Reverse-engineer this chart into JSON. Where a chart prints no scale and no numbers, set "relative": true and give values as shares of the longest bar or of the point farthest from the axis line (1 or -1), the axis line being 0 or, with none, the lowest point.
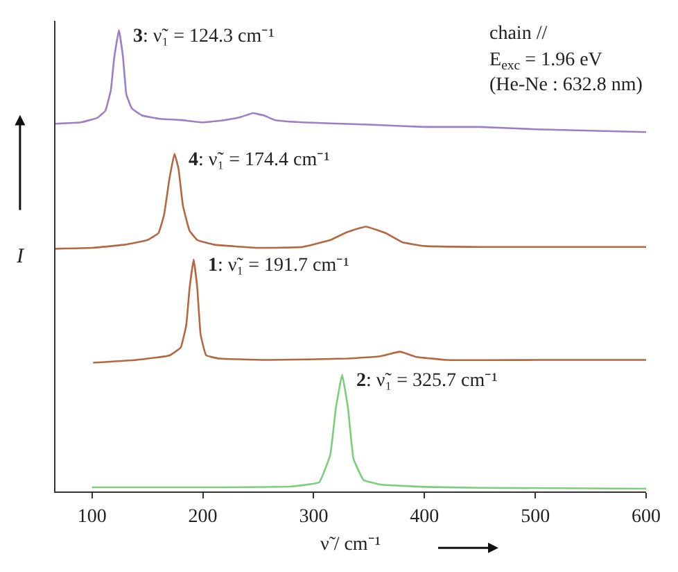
{
  "chart_data": {
    "type": "line",
    "relative": true,
    "xlabel": "ν̃ / cm⁻¹",
    "ylabel": "I",
    "xlim": [
      67,
      600
    ],
    "xticks": [
      100,
      200,
      300,
      400,
      500,
      600
    ],
    "legend": false,
    "marker": "none",
    "line_style": "solid",
    "annotations": [
      "chain //",
      "E$_{exc}$ = 1.96 eV",
      "(He-Ne : 632.8 nm)"
    ],
    "series": [
      {
        "name": "3: ν̃₁ = 124.3 cm⁻¹",
        "color": "#9b7fc7",
        "x": [
          67,
          90,
          105,
          112,
          117,
          120,
          124.3,
          128,
          131,
          136,
          145,
          160,
          180,
          200,
          220,
          235,
          245,
          255,
          265,
          290,
          350,
          400,
          450,
          500,
          550,
          600
        ],
        "values": [
          0.797,
          0.8,
          0.81,
          0.825,
          0.87,
          0.94,
          1.0,
          0.94,
          0.86,
          0.83,
          0.815,
          0.808,
          0.805,
          0.8,
          0.805,
          0.812,
          0.82,
          0.815,
          0.805,
          0.8,
          0.795,
          0.79,
          0.79,
          0.785,
          0.782,
          0.779
        ]
      },
      {
        "name": "4: ν̃₁ = 174.4 cm⁻¹",
        "color": "#b5673f",
        "x": [
          67,
          100,
          130,
          150,
          160,
          165,
          170,
          174.4,
          178,
          182,
          188,
          195,
          210,
          250,
          290,
          315,
          330,
          347,
          365,
          380,
          400,
          450,
          500,
          550,
          600
        ],
        "values": [
          0.526,
          0.528,
          0.535,
          0.545,
          0.56,
          0.6,
          0.68,
          0.732,
          0.7,
          0.62,
          0.565,
          0.545,
          0.535,
          0.528,
          0.53,
          0.545,
          0.562,
          0.574,
          0.56,
          0.54,
          0.532,
          0.53,
          0.53,
          0.53,
          0.53
        ]
      },
      {
        "name": "1: ν̃₁ = 191.7 cm⁻¹",
        "color": "#b5673f",
        "x": [
          101,
          140,
          170,
          180,
          185,
          188,
          191.7,
          195,
          198,
          203,
          215,
          260,
          330,
          360,
          378,
          392,
          420,
          500,
          600
        ],
        "values": [
          0.279,
          0.285,
          0.295,
          0.312,
          0.36,
          0.44,
          0.503,
          0.44,
          0.34,
          0.295,
          0.288,
          0.285,
          0.288,
          0.293,
          0.303,
          0.292,
          0.285,
          0.285,
          0.285
        ]
      },
      {
        "name": "2: ν̃₁ = 325.7 cm⁻¹",
        "color": "#7ccf7a",
        "x": [
          100,
          200,
          280,
          305,
          315,
          320,
          325.7,
          331,
          336,
          345,
          360,
          400,
          450,
          600
        ],
        "values": [
          0.009,
          0.009,
          0.011,
          0.02,
          0.08,
          0.18,
          0.253,
          0.18,
          0.07,
          0.025,
          0.015,
          0.01,
          0.008,
          0.006
        ]
      }
    ]
  }
}
